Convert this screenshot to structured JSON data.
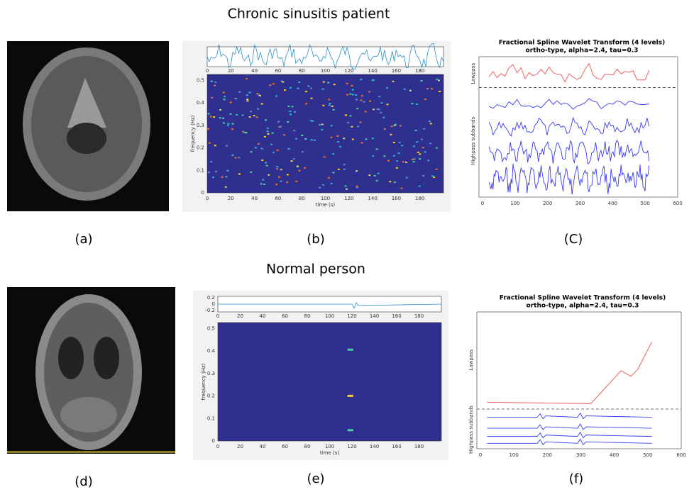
{
  "row1": {
    "heading": "Chronic sinusitis patient",
    "captions": [
      "(a)",
      "(b)",
      "(C)"
    ],
    "spectrogram": {
      "xlabel": "time (s)",
      "ylabel": "frequency (Hz)",
      "xticks": [
        0,
        20,
        40,
        60,
        80,
        100,
        120,
        140,
        160,
        180
      ],
      "yticks": [
        0,
        0.1,
        0.2,
        0.3,
        0.4,
        0.5
      ]
    },
    "wavelet": {
      "title": [
        "Fractional Spline Wavelet Transform (4 levels)",
        "ortho-type, alpha=2.4, tau=0.3"
      ],
      "lowpass": "Lowpass",
      "highpass": "Highpass subbands",
      "xticks": [
        0,
        100,
        200,
        300,
        400,
        500,
        600
      ]
    }
  },
  "row2": {
    "heading": "Normal person",
    "captions": [
      "(d)",
      "(e)",
      "(f)"
    ],
    "spectrogram": {
      "xlabel": "time (s)",
      "ylabel": "frequency (Hz)",
      "xticks": [
        0,
        20,
        40,
        60,
        80,
        100,
        120,
        140,
        160,
        180
      ],
      "yticks": [
        0,
        0.1,
        0.2,
        0.3,
        0.4,
        0.5
      ],
      "top_yticks": [
        0.2,
        0,
        -0.2
      ]
    },
    "wavelet": {
      "title": [
        "Fractional Spline Wavelet Transform (4 levels)",
        "ortho-type, alpha=2.4, tau=0.3"
      ],
      "lowpass": "Lowpass",
      "highpass": "Highpass subbands",
      "xticks": [
        0,
        100,
        200,
        300,
        400,
        500,
        600
      ]
    }
  }
}
